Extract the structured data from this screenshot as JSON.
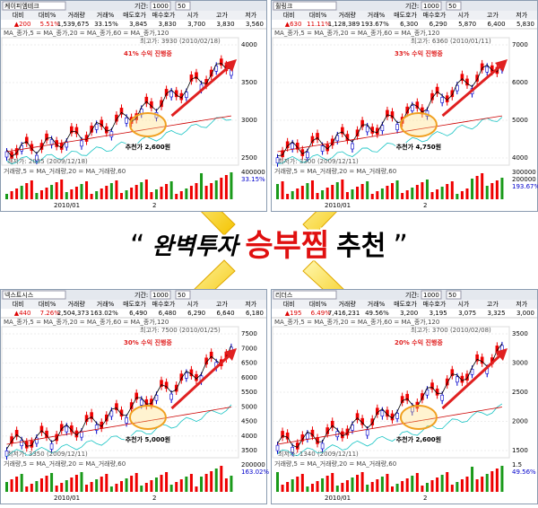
{
  "banner": {
    "open_quote": "“",
    "brand": "완벽투자",
    "highlight": "승부찜",
    "tail": "추천",
    "close_quote": "”"
  },
  "columns": [
    "대비",
    "대비%",
    "거래량",
    "거래%",
    "매도호가",
    "매수호가",
    "시가",
    "고가",
    "저가"
  ],
  "panels": [
    {
      "name": "케이피엠테크",
      "period_label": "기간:",
      "period": "1000",
      "count": "50",
      "row": [
        "▲200",
        "5.51%",
        "1,539,675",
        "33.15%",
        "3,845",
        "3,830",
        "3,700",
        "3,830",
        "3,560"
      ],
      "legend": "MA_종가,5 = MA_종가,20 = MA_종가,60 = MA_종가,120",
      "high": "최고가: 3930 (2010/02/18)",
      "low": "최저가: 2035 (2009/12/18)",
      "gain": "41% 수익 진행중",
      "rec": "추천가 2,600원",
      "price_ticks": [
        "4000",
        "3500",
        "3000",
        "2500"
      ],
      "vol_legend": "거래량,5 = MA_거래량,20 = MA_거래량,60",
      "vol_ticks": [
        "400000",
        "33.15%"
      ],
      "dates": [
        "2010/01",
        "2"
      ]
    },
    {
      "name": "휠링크",
      "period_label": "기간:",
      "period": "1000",
      "count": "50",
      "row": [
        "▲630",
        "11.11%",
        "1,128,389",
        "193.67%",
        "6,300",
        "6,290",
        "5,870",
        "6,400",
        "5,830"
      ],
      "legend": "MA_종가,5 = MA_종가,20 = MA_종가,60 = MA_종가,120",
      "high": "최고가: 6360 (2010/01/11)",
      "low": "최저가: 3300 (2009/12/11)",
      "gain": "33% 수익 진행중",
      "rec": "추천가 4,750원",
      "price_ticks": [
        "7000",
        "6000",
        "5000",
        "4000"
      ],
      "vol_legend": "거래량,5 = MA_거래량,20 = MA_거래량,60",
      "vol_ticks": [
        "300000",
        "200000",
        "193.67%"
      ],
      "dates": [
        "2010/01",
        "2"
      ]
    },
    {
      "name": "넥스트시스",
      "period_label": "기간:",
      "period": "1000",
      "count": "50",
      "row": [
        "▲440",
        "7.26%",
        "2,504,373",
        "163.02%",
        "6,490",
        "6,480",
        "6,290",
        "6,640",
        "6,180"
      ],
      "legend": "MA_종가,5 = MA_종가,20 = MA_종가,60 = MA_종가,120",
      "high": "최고가: 7500 (2010/01/25)",
      "low": "최저가: 3350 (2009/12/11)",
      "gain": "30% 수익 진행중",
      "rec": "추천가 5,000원",
      "price_ticks": [
        "7500",
        "7000",
        "6500",
        "6000",
        "5500",
        "5000",
        "4500",
        "4000",
        "3500"
      ],
      "vol_legend": "거래량,5 = MA_거래량,20 = MA_거래량,60",
      "vol_ticks": [
        "200000",
        "163.02%"
      ],
      "dates": [
        "2010/01",
        "2"
      ]
    },
    {
      "name": "리더스",
      "period_label": "기간:",
      "period": "1000",
      "count": "50",
      "row": [
        "▲195",
        "6.49%",
        "7,416,231",
        "49.56%",
        "3,200",
        "3,195",
        "3,075",
        "3,325",
        "3,000"
      ],
      "legend": "MA_종가,5 = MA_종가,20 = MA_종가,60 = MA_종가,120",
      "high": "최고가: 3700 (2010/02/08)",
      "low": "최저가: 1340 (2009/12/11)",
      "gain": "20% 수익 진행중",
      "rec": "추천가 2,600원",
      "price_ticks": [
        "3500",
        "3000",
        "2500",
        "2000",
        "1500"
      ],
      "vol_legend": "거래량,5 = MA_거래량,20 = MA_거래량,60",
      "vol_ticks": [
        "1.5",
        "49.56%"
      ],
      "dates": [
        "2010/01",
        "2"
      ]
    }
  ]
}
